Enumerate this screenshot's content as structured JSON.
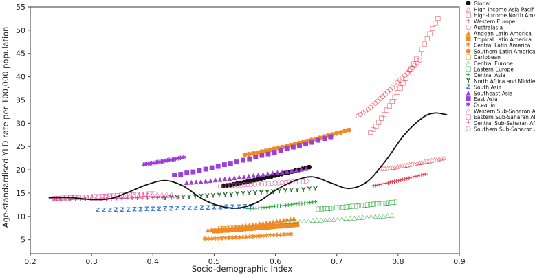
{
  "chart_data": {
    "type": "scatter",
    "xlabel": "Socio-demographic Index",
    "ylabel": "Age-standardised YLD rate per 100,000 population",
    "xlim": [
      0.2,
      0.9
    ],
    "ylim": [
      2,
      55
    ],
    "xticks": [
      0.2,
      0.3,
      0.4,
      0.5,
      0.6,
      0.7,
      0.8,
      0.9
    ],
    "xtick_labels": [
      "0.2",
      "0.3",
      "0.4",
      "0.5",
      "0.6",
      "0.7",
      "0.8",
      "0.9"
    ],
    "yticks": [
      5,
      10,
      15,
      20,
      25,
      30,
      35,
      40,
      45,
      50,
      55
    ],
    "ytick_labels": [
      "5",
      "10",
      "15",
      "20",
      "25",
      "30",
      "35",
      "40",
      "45",
      "50",
      "55"
    ],
    "legend_position": "right",
    "expected_curve": [
      [
        0.23,
        14.0
      ],
      [
        0.27,
        14.0
      ],
      [
        0.3,
        13.6
      ],
      [
        0.33,
        13.8
      ],
      [
        0.36,
        15.2
      ],
      [
        0.39,
        16.8
      ],
      [
        0.42,
        17.7
      ],
      [
        0.45,
        16.5
      ],
      [
        0.48,
        13.8
      ],
      [
        0.51,
        12.2
      ],
      [
        0.54,
        11.8
      ],
      [
        0.57,
        13.0
      ],
      [
        0.6,
        15.6
      ],
      [
        0.63,
        17.6
      ],
      [
        0.66,
        18.5
      ],
      [
        0.69,
        17.2
      ],
      [
        0.72,
        16.0
      ],
      [
        0.75,
        17.5
      ],
      [
        0.78,
        22.0
      ],
      [
        0.81,
        27.5
      ],
      [
        0.84,
        31.2
      ],
      [
        0.86,
        32.2
      ],
      [
        0.88,
        31.8
      ]
    ],
    "series": [
      {
        "name": "Global",
        "symbol": "●",
        "color": "#111111",
        "x_range": [
          0.515,
          0.655
        ],
        "y_range": [
          16.5,
          20.5
        ]
      },
      {
        "name": "High-income Asia Pacific",
        "symbol": "△",
        "color": "#e8434f",
        "x_range": [
          0.775,
          0.875
        ],
        "y_range": [
          20.2,
          22.5
        ]
      },
      {
        "name": "High-income North America",
        "symbol": "□",
        "color": "#e8434f",
        "x_range": [
          0.755,
          0.865
        ],
        "y_range": [
          28.0,
          52.5
        ]
      },
      {
        "name": "Western Europe",
        "symbol": "+",
        "color": "#e8434f",
        "x_range": [
          0.76,
          0.845
        ],
        "y_range": [
          16.5,
          19.0
        ]
      },
      {
        "name": "Australasia",
        "symbol": "○",
        "color": "#e8434f",
        "x_range": [
          0.735,
          0.835
        ],
        "y_range": [
          31.5,
          43.5
        ]
      },
      {
        "name": "Andean Latin America",
        "symbol": "▲",
        "color": "#f08a24",
        "x_range": [
          0.49,
          0.63
        ],
        "y_range": [
          7.0,
          9.5
        ]
      },
      {
        "name": "Tropical Latin America",
        "symbol": "■",
        "color": "#f08a24",
        "x_range": [
          0.5,
          0.635
        ],
        "y_range": [
          6.8,
          8.2
        ]
      },
      {
        "name": "Central Latin America",
        "symbol": "✱",
        "color": "#f08a24",
        "x_range": [
          0.485,
          0.625
        ],
        "y_range": [
          5.0,
          6.0
        ]
      },
      {
        "name": "Southern Latin America",
        "symbol": "●",
        "color": "#f08a24",
        "x_range": [
          0.55,
          0.72
        ],
        "y_range": [
          23.2,
          28.5
        ]
      },
      {
        "name": "Caribbean",
        "symbol": "□",
        "color": "#f08a24",
        "x_range": [
          0.51,
          0.63
        ],
        "y_range": [
          7.3,
          8.0
        ]
      },
      {
        "name": "Central Europe",
        "symbol": "△",
        "color": "#2eaa3c",
        "x_range": [
          0.62,
          0.79
        ],
        "y_range": [
          8.8,
          10.2
        ]
      },
      {
        "name": "Eastern Europe",
        "symbol": "□",
        "color": "#2eaa3c",
        "x_range": [
          0.67,
          0.795
        ],
        "y_range": [
          11.5,
          13.0
        ]
      },
      {
        "name": "Central Asia",
        "symbol": "+",
        "color": "#2eaa3c",
        "x_range": [
          0.555,
          0.665
        ],
        "y_range": [
          11.5,
          13.0
        ]
      },
      {
        "name": "North Africa and Middle East",
        "symbol": "Y",
        "color": "#2c6e2c",
        "x_range": [
          0.42,
          0.665
        ],
        "y_range": [
          13.8,
          15.8
        ]
      },
      {
        "name": "South Asia",
        "symbol": "Z",
        "color": "#3d7fd6",
        "x_range": [
          0.31,
          0.56
        ],
        "y_range": [
          11.2,
          12.0
        ]
      },
      {
        "name": "Southeast Asia",
        "symbol": "▲",
        "color": "#9b3fd6",
        "x_range": [
          0.455,
          0.65
        ],
        "y_range": [
          17.2,
          20.2
        ]
      },
      {
        "name": "East Asia",
        "symbol": "■",
        "color": "#9b3fd6",
        "x_range": [
          0.435,
          0.69
        ],
        "y_range": [
          18.8,
          27.0
        ]
      },
      {
        "name": "Oceania",
        "symbol": "✱",
        "color": "#9b3fd6",
        "x_range": [
          0.385,
          0.45
        ],
        "y_range": [
          21.0,
          22.5
        ]
      },
      {
        "name": "Western Sub-Saharan Africa",
        "symbol": "△",
        "color": "#e0438f",
        "x_range": [
          0.24,
          0.43
        ],
        "y_range": [
          13.8,
          14.8
        ]
      },
      {
        "name": "Eastern Sub-Saharan Africa",
        "symbol": "□",
        "color": "#e0438f",
        "x_range": [
          0.24,
          0.4
        ],
        "y_range": [
          13.8,
          14.8
        ]
      },
      {
        "name": "Central Sub-Saharan Africa",
        "symbol": "+",
        "color": "#e0438f",
        "x_range": [
          0.24,
          0.45
        ],
        "y_range": [
          13.5,
          14.0
        ]
      },
      {
        "name": "Southern Sub-Saharan Africa",
        "symbol": "○",
        "color": "#e0438f",
        "x_range": [
          0.51,
          0.65
        ],
        "y_range": [
          16.5,
          17.5
        ]
      }
    ]
  }
}
